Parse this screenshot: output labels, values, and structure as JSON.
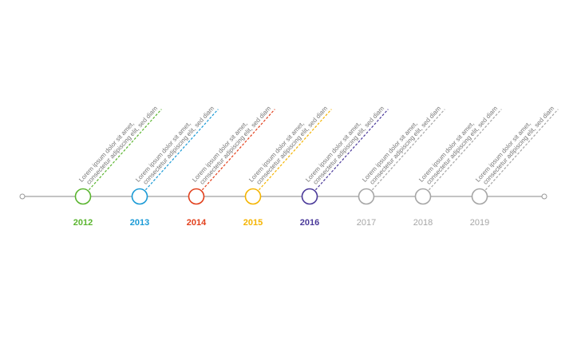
{
  "timeline": {
    "items": [
      {
        "year": "2012",
        "color": "#5ab52f",
        "lines": [
          "Lorem ipsum dolor sit amet,",
          "consectetur adipiscing elit, sed diam"
        ]
      },
      {
        "year": "2013",
        "color": "#1a9ad6",
        "lines": [
          "Lorem ipsum dolor sit amet,",
          "consectetur adipiscing elit, sed diam"
        ]
      },
      {
        "year": "2014",
        "color": "#e2401c",
        "lines": [
          "Lorem ipsum dolor sit amet,",
          "consectetur adipiscing elit, sed diam"
        ]
      },
      {
        "year": "2015",
        "color": "#f5b400",
        "lines": [
          "Lorem ipsum dolor sit amet,",
          "consectetur adipiscing elit, sed diam"
        ]
      },
      {
        "year": "2016",
        "color": "#4b3a9a",
        "lines": [
          "Lorem ipsum dolor sit amet,",
          "consectetur adipiscing elit, sed diam"
        ]
      },
      {
        "year": "2017",
        "color": "#a6a6a6",
        "lines": [
          "Lorem ipsum dolor sit amet,",
          "consectetur adipiscing elit, sed diam"
        ]
      },
      {
        "year": "2018",
        "color": "#a6a6a6",
        "lines": [
          "Lorem ipsum dolor sit amet,",
          "consectetur adipiscing elit, sed diam"
        ]
      },
      {
        "year": "2019",
        "color": "#a6a6a6",
        "lines": [
          "Lorem ipsum dolor sit amet,",
          "consectetur adipiscing elit, sed diam"
        ]
      }
    ]
  }
}
